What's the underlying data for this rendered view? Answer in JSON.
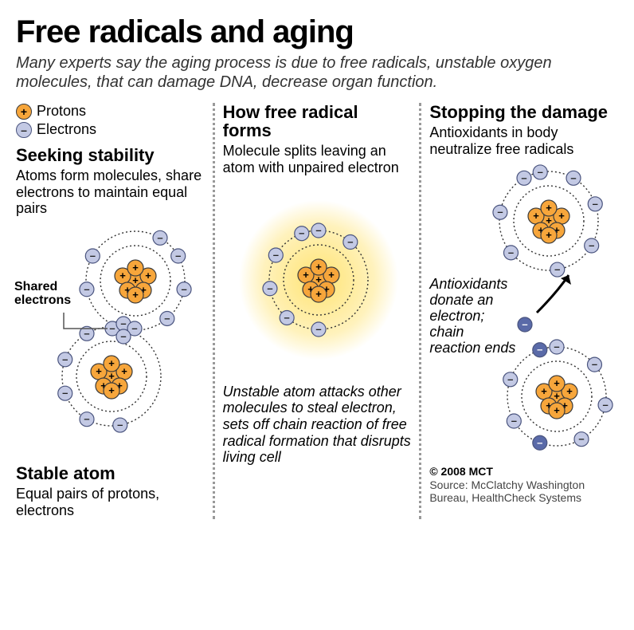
{
  "title": "Free radicals and aging",
  "subtitle": "Many experts say the aging process is due to free radicals, unstable oxygen molecules, that can damage DNA, decrease organ function.",
  "legend": {
    "proton_label": "Protons",
    "electron_label": "Electrons",
    "proton_glyph": "+",
    "electron_glyph": "–"
  },
  "colors": {
    "proton_fill": "#f7a63b",
    "proton_stroke": "#3b3b3b",
    "electron_fill": "#c3c9e4",
    "electron_stroke": "#4a547e",
    "orbit_stroke": "#333333",
    "glow": "#ffe26b",
    "bg": "#ffffff",
    "divider": "#999999",
    "antioxidant_fill": "#5a6aa8"
  },
  "style": {
    "orbit_dash": "2,3",
    "orbit_width": 1.4,
    "proton_radius": 10,
    "electron_radius": 9,
    "outer_orbit_r": 62,
    "inner_orbit_r": 44,
    "nucleus_count": 7
  },
  "col1": {
    "heading": "Seeking stability",
    "body": "Atoms form molecules, share electrons to maintain equal pairs",
    "shared_label": "Shared electrons",
    "bottom_heading": "Stable atom",
    "bottom_body": "Equal pairs of protons, electrons"
  },
  "col2": {
    "heading": "How free radical forms",
    "body": "Molecule splits leaving an atom with unpaired electron",
    "bottom_body": "Unstable atom attacks other molecules to steal electron, sets off chain reaction of free radical formation that disrupts living cell"
  },
  "col3": {
    "heading": "Stopping the damage",
    "body": "Antioxidants in body neutralize free radicals",
    "annot": "Antioxidants donate an electron; chain reaction ends",
    "copyright": "© 2008 MCT",
    "source": "Source: McClatchy Washington Bureau, HealthCheck Systems"
  }
}
